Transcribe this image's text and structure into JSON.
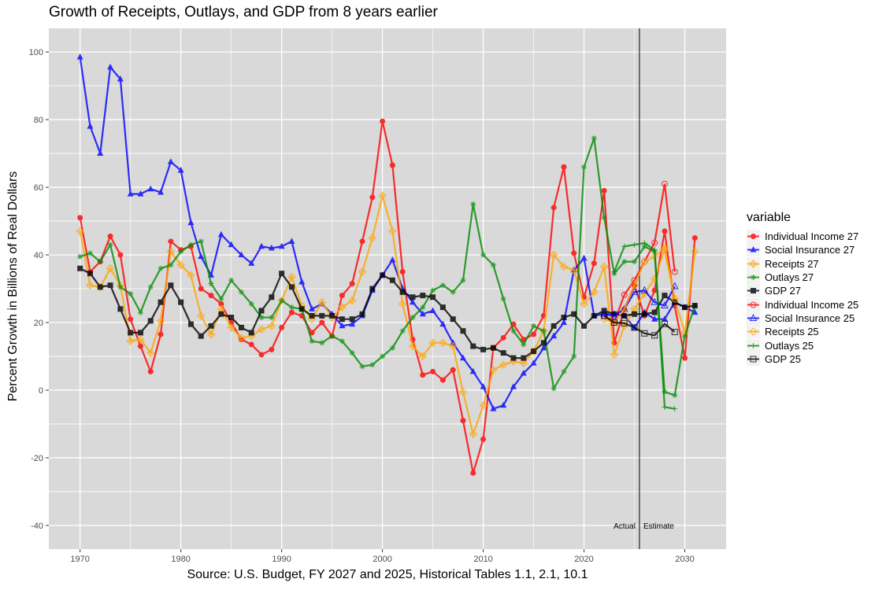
{
  "chart_data": {
    "type": "line",
    "title": "Growth of Receipts, Outlays, and GDP from 8 years earlier",
    "xlabel": "Source: U.S. Budget, FY 2027 and 2025, Historical Tables 1.1, 2.1, 10.1",
    "ylabel": "Percent Growth in Billions of Real Dollars",
    "xlim": [
      1966.9,
      2034.1
    ],
    "ylim": [
      -47,
      107
    ],
    "xticks": [
      1970,
      1980,
      1990,
      2000,
      2010,
      2020,
      2030
    ],
    "yticks": [
      -40,
      -20,
      0,
      20,
      40,
      60,
      80,
      100
    ],
    "grid": true,
    "legend_position": "right",
    "legend_title": "variable",
    "vline": {
      "x": 2025.5,
      "labels": [
        "Actual",
        "Estimate"
      ]
    },
    "series": [
      {
        "name": "Individual Income 27",
        "color": "#ff0000",
        "marker": "circle",
        "start": 1970,
        "values": [
          51,
          35,
          38,
          45.5,
          40,
          21,
          13,
          5.5,
          16.5,
          44,
          41.5,
          42.5,
          30,
          28,
          25.5,
          20,
          15,
          13.5,
          10.5,
          12,
          18.5,
          23,
          22,
          17,
          20,
          16,
          28,
          31.5,
          44,
          57,
          79.5,
          66.5,
          35,
          15,
          4.5,
          5.5,
          3,
          6,
          -9,
          -24.5,
          -14.5,
          12.5,
          15.5,
          19.5,
          15,
          16.5,
          22,
          54,
          66,
          40.5,
          27.5,
          37.5,
          59,
          14,
          24,
          31,
          22,
          29.5,
          47,
          25,
          9.5,
          45
        ]
      },
      {
        "name": "Social Insurance 27",
        "color": "#0000ff",
        "marker": "triangle",
        "start": 1970,
        "values": [
          98.5,
          78,
          70,
          95.5,
          92,
          58,
          58,
          59.5,
          58.5,
          67.5,
          65,
          49.5,
          39.5,
          34,
          46,
          43,
          40,
          37.5,
          42.5,
          42,
          42.5,
          44,
          32,
          24,
          25.5,
          22.5,
          19,
          19.5,
          22,
          29.5,
          34,
          38.5,
          30,
          26,
          22.5,
          23.5,
          19.5,
          14,
          9.5,
          5.5,
          1,
          -5.5,
          -4.5,
          1,
          5,
          8,
          12.5,
          16,
          20,
          35.5,
          39,
          22,
          22.5,
          22.5,
          22,
          18.5,
          23,
          21,
          21,
          26,
          24.5,
          23
        ]
      },
      {
        "name": "Receipts 27",
        "color": "#ffa500",
        "marker": "diamondplus",
        "start": 1970,
        "values": [
          47,
          31,
          30.5,
          36,
          31,
          14.5,
          15,
          11,
          20.5,
          41,
          37,
          34,
          22,
          16.5,
          24,
          18.5,
          15.5,
          16,
          18,
          19,
          26.5,
          33.5,
          25,
          21,
          26,
          21.5,
          24.5,
          26.5,
          35,
          45,
          57.5,
          47,
          25.5,
          13,
          10,
          14,
          14,
          13,
          -0.5,
          -13,
          -4.5,
          6,
          7.5,
          8.5,
          8,
          11.5,
          17.5,
          40,
          36.5,
          35.5,
          25.5,
          29,
          36.5,
          10.5,
          19,
          24,
          28.5,
          33,
          41.5,
          27,
          17,
          41
        ]
      },
      {
        "name": "Outlays 27",
        "color": "#008b00",
        "marker": "asterisk",
        "start": 1970,
        "values": [
          39.5,
          40.5,
          38,
          43,
          30.5,
          28.5,
          23,
          30.5,
          36,
          37,
          41,
          43,
          44,
          31.5,
          27,
          32.5,
          29,
          25.5,
          21.5,
          21.5,
          26.5,
          24.5,
          24,
          14.5,
          14,
          16,
          14.5,
          11,
          7,
          7.5,
          10,
          12.5,
          17.5,
          21.5,
          24.5,
          29.5,
          31,
          29,
          32.5,
          55,
          40,
          37,
          27,
          17.5,
          13.5,
          19,
          17.5,
          0.5,
          5.5,
          10,
          66,
          74.5,
          51,
          34.5,
          38,
          38,
          42.5,
          41,
          -0.5,
          -1.5,
          16,
          25
        ]
      },
      {
        "name": "GDP 27",
        "color": "#000000",
        "marker": "square",
        "start": 1970,
        "values": [
          36,
          34.5,
          30.5,
          31,
          24,
          17,
          17,
          20.5,
          26,
          31,
          26,
          19.5,
          16,
          19,
          22.5,
          21.5,
          18.5,
          17,
          23.5,
          27.5,
          34.5,
          30.5,
          24,
          22,
          22,
          22,
          21,
          21,
          22.5,
          30,
          34,
          32.5,
          29,
          27.5,
          28,
          27.5,
          24.5,
          21,
          17.5,
          13,
          12,
          12.5,
          11,
          9.5,
          9.5,
          11.5,
          14,
          19,
          21.5,
          22.5,
          19,
          22,
          23.5,
          22.5,
          22,
          22.5,
          22.5,
          23,
          28,
          26,
          24.5,
          25
        ]
      },
      {
        "name": "Individual Income 25",
        "color": "#ff0000",
        "marker": "opencircle",
        "start": 2022,
        "values": [
          22,
          20,
          28.2,
          32.5,
          38,
          43.6,
          61,
          35
        ]
      },
      {
        "name": "Social Insurance 25",
        "color": "#0000ff",
        "marker": "opentriangle",
        "start": 2022,
        "values": [
          22.5,
          22,
          24,
          29,
          29.5,
          26,
          25,
          30.7
        ]
      },
      {
        "name": "Receipts 25",
        "color": "#ffa500",
        "marker": "opendiamond",
        "start": 2022,
        "values": [
          21,
          20,
          24,
          31,
          38,
          39.5,
          42,
          27
        ]
      },
      {
        "name": "Outlays 25",
        "color": "#008b00",
        "marker": "plus",
        "start": 2023,
        "values": [
          35,
          42.5,
          43,
          43.5,
          41.5,
          -5,
          -5.5
        ]
      },
      {
        "name": "GDP 25",
        "color": "#000000",
        "marker": "opensquare",
        "start": 2022,
        "values": [
          22,
          20,
          19.8,
          18.5,
          16.8,
          16.2,
          19.6,
          17.2
        ]
      }
    ]
  }
}
